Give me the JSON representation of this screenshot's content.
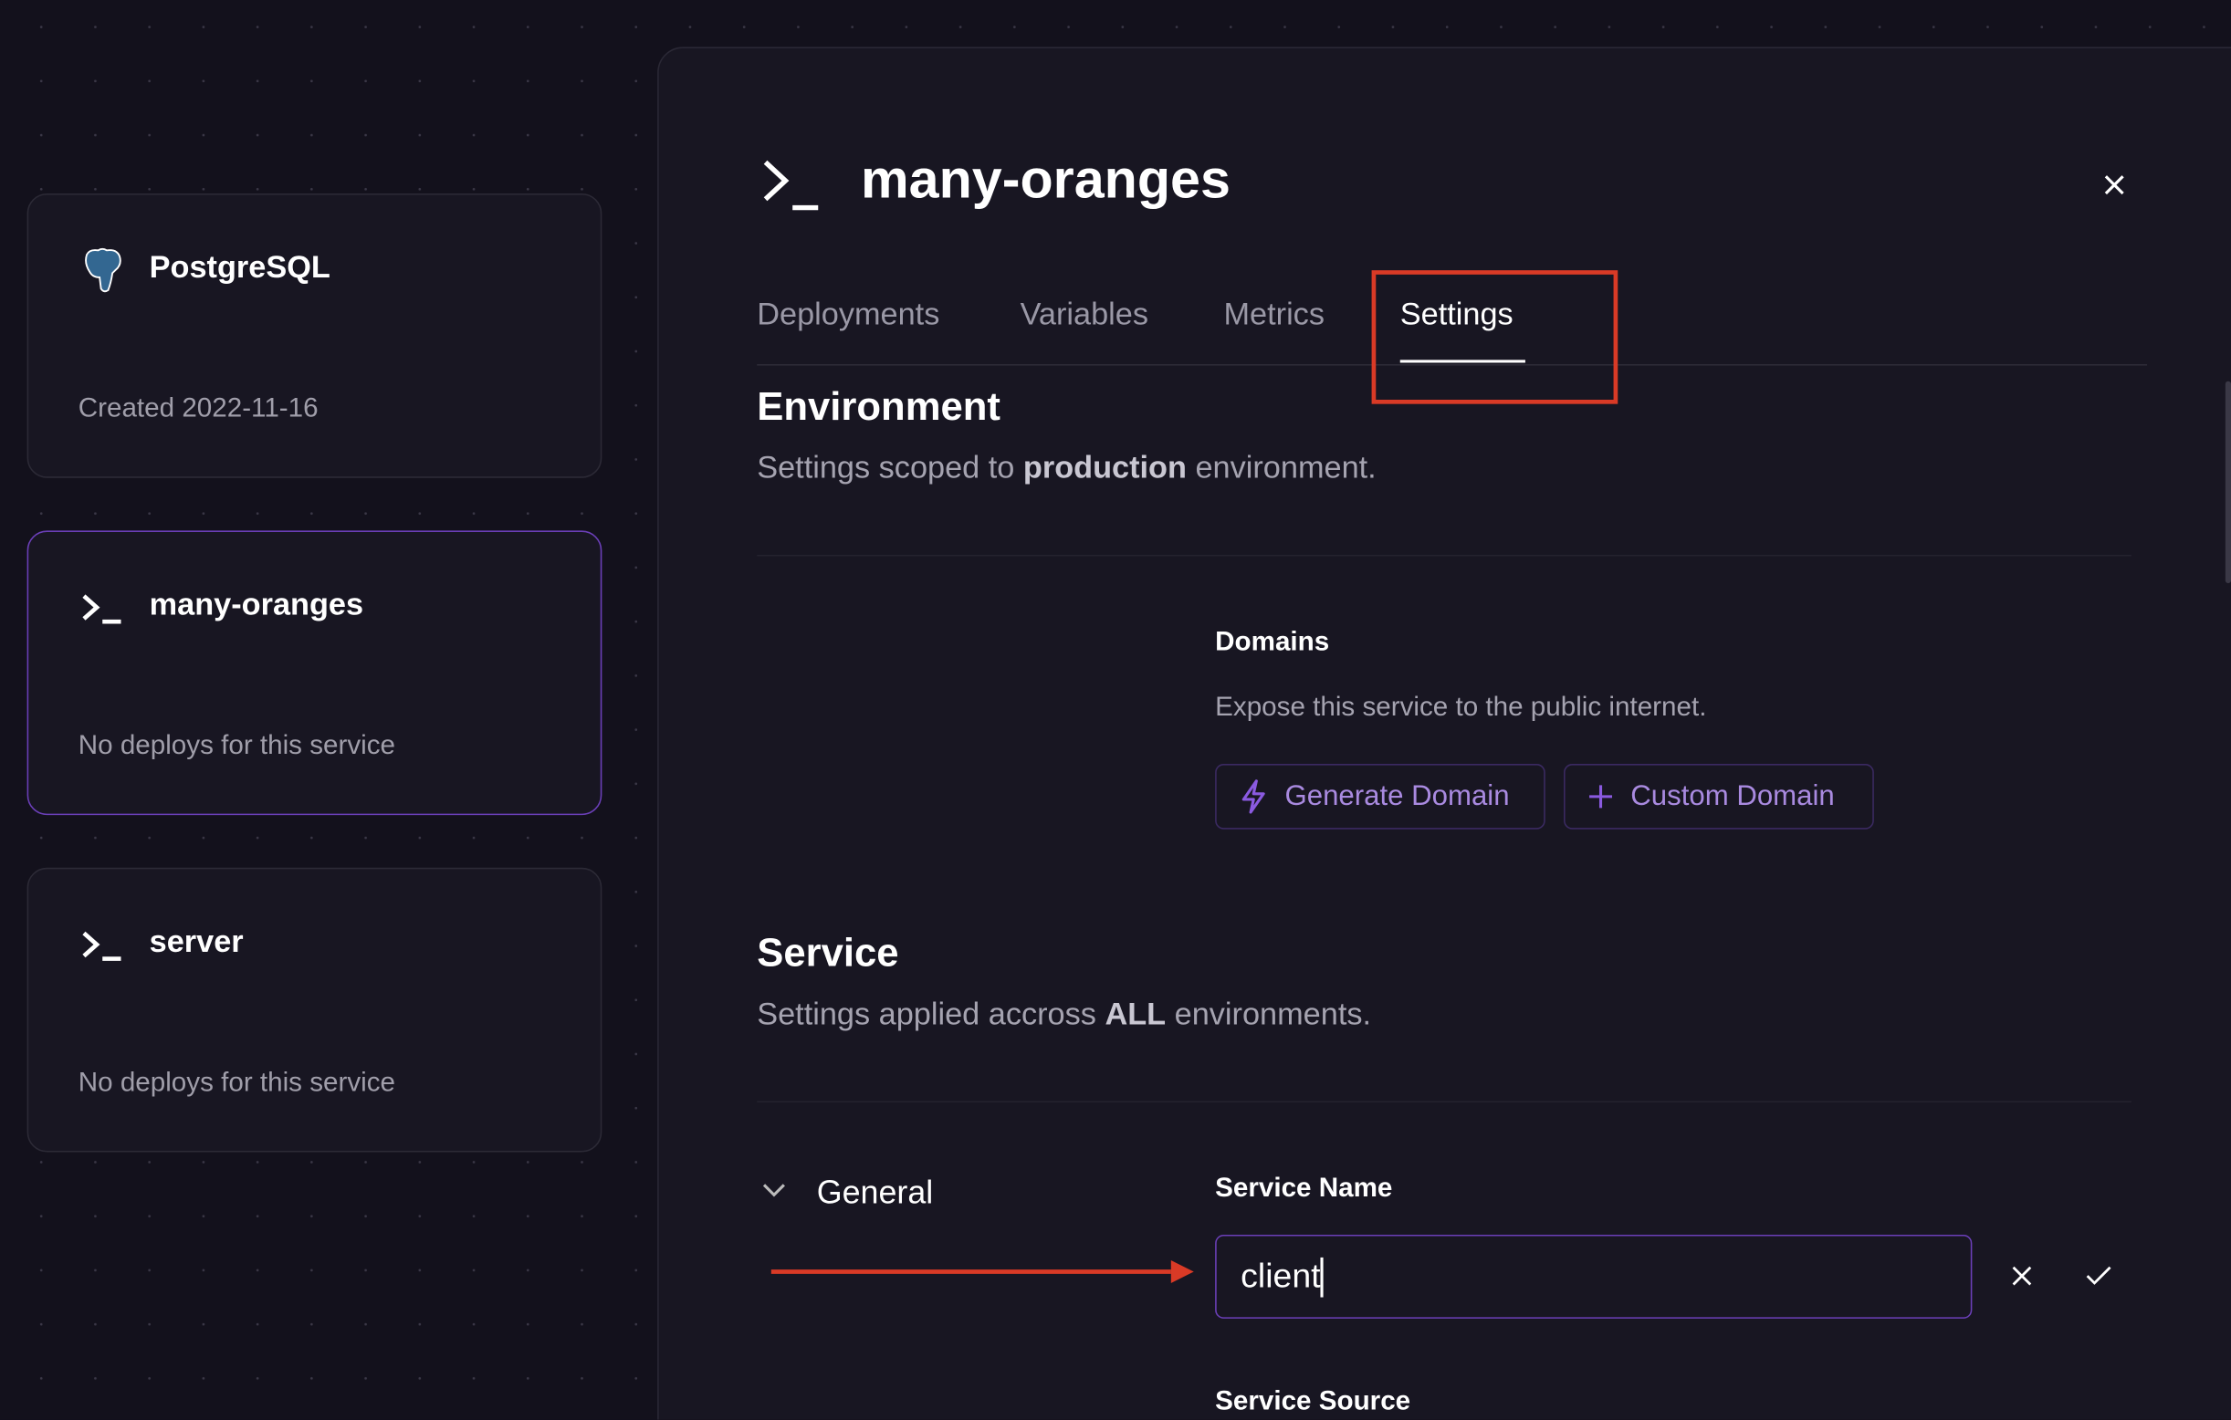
{
  "services": [
    {
      "name": "PostgreSQL",
      "subtitle": "Created 2022-11-16",
      "icon": "postgresql-elephant-icon",
      "active": false
    },
    {
      "name": "many-oranges",
      "subtitle": "No deploys for this service",
      "icon": "terminal-icon",
      "active": true
    },
    {
      "name": "server",
      "subtitle": "No deploys for this service",
      "icon": "terminal-icon",
      "active": false
    }
  ],
  "panel": {
    "title": "many-oranges",
    "tabs": [
      {
        "label": "Deployments"
      },
      {
        "label": "Variables"
      },
      {
        "label": "Metrics"
      },
      {
        "label": "Settings",
        "selected": true
      }
    ],
    "environment": {
      "heading": "Environment",
      "desc_pre": "Settings scoped to ",
      "desc_bold": "production",
      "desc_post": " environment."
    },
    "domains": {
      "label": "Domains",
      "desc": "Expose this service to the public internet.",
      "generate_label": "Generate Domain",
      "custom_label": "Custom Domain"
    },
    "service": {
      "heading": "Service",
      "desc_pre": "Settings applied accross ",
      "desc_bold": "ALL",
      "desc_post": " environments."
    },
    "general": {
      "label": "General",
      "service_name_label": "Service Name",
      "service_name_value": "client",
      "service_source_label": "Service Source"
    }
  },
  "colors": {
    "accent": "#6b3fb8",
    "annotation": "#d93a26",
    "background": "#13111c",
    "panel": "#181622"
  }
}
